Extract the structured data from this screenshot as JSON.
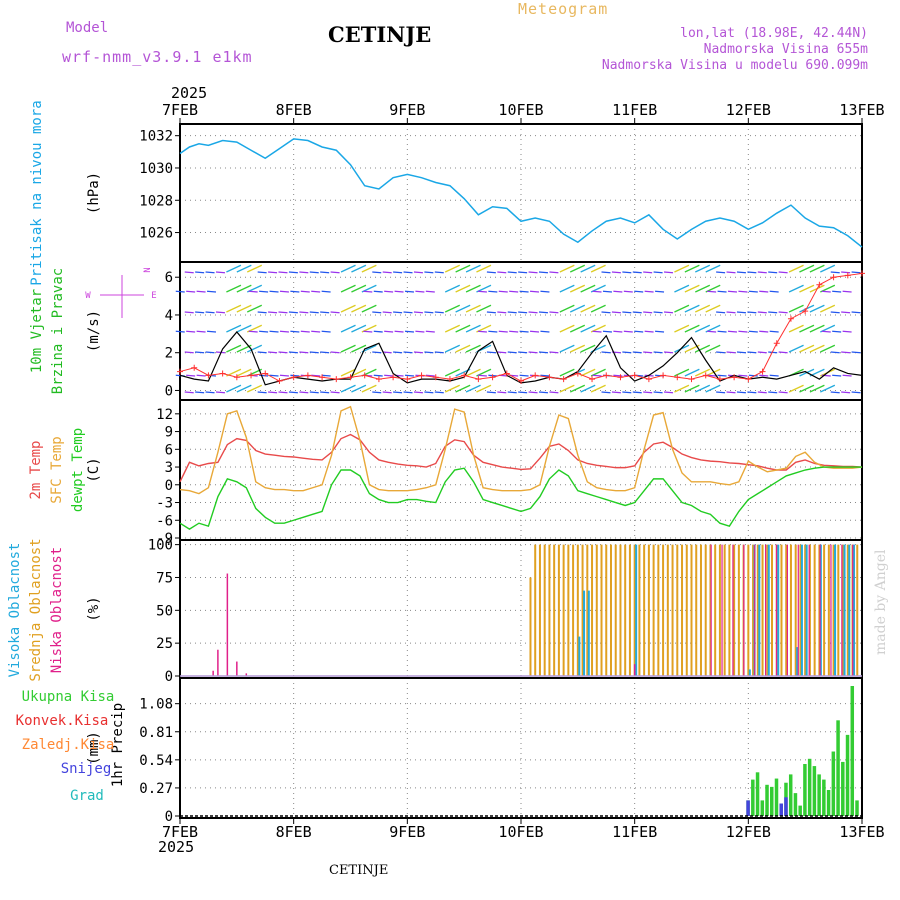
{
  "header": {
    "model_label": "Model",
    "model_name": "wrf-nmm_v3.9.1 e1km",
    "station": "CETINJE",
    "app_title": "Meteogram",
    "lonlat": "lon,lat (18.98E, 42.44N)",
    "altitude": "Nadmorska Visina 655m",
    "model_altitude": "Nadmorska Visina u modelu 690.099m",
    "footer_station": "CETINJE",
    "credit": "made by Angel"
  },
  "colors": {
    "pressure": "#1aa7e6",
    "wind_speed": "#000000",
    "gust": "#ff3030",
    "temp2m": "#e84a4a",
    "sfc_temp": "#e8a838",
    "dewpoint": "#22cc22",
    "high_cloud": "#22aadd",
    "mid_cloud": "#e0a020",
    "low_cloud": "#e0208a",
    "total_precip": "#33cc33",
    "conv_precip": "#e83030",
    "frozen_precip": "#ff8833",
    "snow": "#4444dd",
    "hail": "#22bbbb",
    "compass": "#cc44dd"
  },
  "x_axis": {
    "year": "2025",
    "ticks": [
      "7FEB",
      "8FEB",
      "9FEB",
      "10FEB",
      "11FEB",
      "12FEB",
      "13FEB"
    ]
  },
  "compass": {
    "n": "N",
    "s": "S",
    "e": "E",
    "w": "W"
  },
  "chart_data": [
    {
      "type": "line",
      "title": "",
      "ylabel_lines": [
        "Pritisak na nivou mora"
      ],
      "unit": "(hPa)",
      "ylim": [
        1024.3,
        1032.6
      ],
      "yticks": [
        1026,
        1028,
        1030,
        1032
      ],
      "ytick_labels": [
        "1026",
        "1028",
        "1030",
        "1032"
      ],
      "x": [
        0,
        2,
        4,
        6,
        9,
        12,
        15,
        18,
        21,
        24,
        27,
        30,
        33,
        36,
        39,
        42,
        45,
        48,
        51,
        54,
        57,
        60,
        63,
        66,
        69,
        72,
        75,
        78,
        81,
        84,
        87,
        90,
        93,
        96,
        99,
        102,
        105,
        108,
        111,
        114,
        117,
        120,
        123,
        126,
        129,
        132,
        135,
        138,
        141,
        144
      ],
      "series": [
        {
          "values": [
            1030.9,
            1031.3,
            1031.5,
            1031.4,
            1031.7,
            1031.6,
            1031.1,
            1030.6,
            1031.2,
            1031.8,
            1031.7,
            1031.3,
            1031.1,
            1030.2,
            1028.9,
            1028.7,
            1029.4,
            1029.6,
            1029.4,
            1029.1,
            1028.9,
            1028.1,
            1027.1,
            1027.6,
            1027.5,
            1026.7,
            1026.9,
            1026.7,
            1025.9,
            1025.4,
            1026.1,
            1026.7,
            1026.9,
            1026.6,
            1027.1,
            1026.2,
            1025.6,
            1026.2,
            1026.7,
            1026.9,
            1026.7,
            1026.2,
            1026.6,
            1027.2,
            1027.7,
            1026.9,
            1026.4,
            1026.3,
            1025.8,
            1025.1
          ]
        }
      ]
    },
    {
      "type": "line",
      "title": "",
      "ylabel_lines": [
        "10m Vjetar",
        "Brzina i Pravac"
      ],
      "unit": "(m/s)",
      "ylim": [
        -0.4,
        6.7
      ],
      "yticks": [
        0,
        2,
        4,
        6
      ],
      "ytick_labels": [
        "0",
        "2",
        "4",
        "6"
      ],
      "x": [
        0,
        3,
        6,
        9,
        12,
        15,
        18,
        21,
        24,
        27,
        30,
        33,
        36,
        39,
        42,
        45,
        48,
        51,
        54,
        57,
        60,
        63,
        66,
        69,
        72,
        75,
        78,
        81,
        84,
        87,
        90,
        93,
        96,
        99,
        102,
        105,
        108,
        111,
        114,
        117,
        120,
        123,
        126,
        129,
        132,
        135,
        138,
        141,
        144
      ],
      "series": [
        {
          "name": "wind speed",
          "values": [
            0.8,
            0.6,
            0.5,
            2.2,
            3.1,
            2.2,
            0.3,
            0.5,
            0.7,
            0.6,
            0.5,
            0.6,
            0.6,
            2.2,
            2.5,
            0.9,
            0.4,
            0.6,
            0.6,
            0.5,
            0.7,
            2.1,
            2.6,
            0.8,
            0.4,
            0.5,
            0.7,
            0.6,
            1.0,
            2.0,
            2.9,
            1.2,
            0.5,
            0.8,
            1.3,
            2.0,
            2.8,
            1.6,
            0.5,
            0.8,
            0.6,
            0.7,
            0.6,
            0.8,
            1.0,
            0.6,
            1.2,
            0.9,
            0.8
          ]
        },
        {
          "name": "gust",
          "values": [
            1.0,
            1.2,
            0.8,
            0.9,
            0.7,
            0.8,
            0.9,
            0.5,
            0.7,
            0.8,
            0.7,
            0.6,
            0.7,
            0.8,
            0.6,
            0.7,
            0.6,
            0.8,
            0.7,
            0.6,
            0.8,
            0.6,
            0.7,
            0.9,
            0.5,
            0.8,
            0.7,
            0.6,
            0.9,
            0.6,
            0.8,
            0.7,
            0.8,
            0.6,
            0.8,
            0.7,
            0.6,
            0.8,
            0.6,
            0.7,
            0.6,
            1.0,
            2.5,
            3.8,
            4.2,
            5.6,
            6.0,
            6.1,
            6.2
          ]
        }
      ]
    },
    {
      "type": "line",
      "title": "",
      "ylabel_lines": [
        "2m Temp",
        "SFC Temp",
        "dewpt Temp"
      ],
      "unit": "(C)",
      "ylim": [
        -9,
        14
      ],
      "yticks": [
        -9,
        -6,
        -3,
        0,
        3,
        6,
        9,
        12
      ],
      "ytick_labels": [
        "-9",
        "-6",
        "-3",
        "0",
        "3",
        "6",
        "9",
        "12"
      ],
      "x": [
        0,
        2,
        4,
        6,
        8,
        10,
        12,
        14,
        16,
        18,
        20,
        22,
        24,
        26,
        28,
        30,
        32,
        34,
        36,
        38,
        40,
        42,
        44,
        46,
        48,
        50,
        52,
        54,
        56,
        58,
        60,
        62,
        64,
        66,
        68,
        70,
        72,
        74,
        76,
        78,
        80,
        82,
        84,
        86,
        88,
        90,
        92,
        94,
        96,
        98,
        100,
        102,
        104,
        106,
        108,
        110,
        112,
        114,
        116,
        118,
        120,
        122,
        124,
        126,
        128,
        130,
        132,
        134,
        136,
        138,
        140,
        142,
        144
      ],
      "series": [
        {
          "name": "2m Temp",
          "values": [
            0.5,
            3.8,
            3.2,
            3.6,
            3.8,
            6.8,
            7.8,
            7.5,
            5.8,
            5.2,
            5.0,
            4.8,
            4.7,
            4.5,
            4.3,
            4.2,
            5.5,
            7.8,
            8.5,
            7.6,
            5.5,
            4.2,
            3.8,
            3.5,
            3.3,
            3.2,
            3.0,
            3.6,
            6.5,
            7.6,
            7.3,
            5.0,
            3.8,
            3.4,
            3.0,
            2.8,
            2.6,
            2.7,
            4.5,
            6.5,
            6.9,
            5.8,
            4.2,
            3.6,
            3.3,
            3.1,
            2.9,
            2.9,
            3.2,
            5.5,
            6.9,
            7.2,
            6.3,
            5.2,
            4.6,
            4.2,
            4.0,
            3.9,
            3.7,
            3.6,
            3.4,
            3.2,
            2.8,
            2.5,
            2.5,
            3.8,
            4.2,
            3.6,
            3.3,
            3.2,
            3.1,
            3.1,
            3.0
          ]
        },
        {
          "name": "SFC Temp",
          "values": [
            -0.8,
            -1.0,
            -1.5,
            -0.5,
            5.5,
            12.0,
            12.5,
            8.0,
            0.5,
            -0.5,
            -0.8,
            -0.8,
            -1.0,
            -1.0,
            -0.5,
            0.0,
            5.0,
            12.5,
            13.2,
            7.5,
            0.0,
            -0.8,
            -1.0,
            -1.0,
            -1.0,
            -0.8,
            -0.5,
            0.0,
            6.0,
            12.8,
            12.3,
            5.0,
            -0.5,
            -0.8,
            -1.0,
            -1.0,
            -1.0,
            -0.8,
            0.0,
            6.5,
            11.8,
            11.2,
            5.0,
            0.5,
            -0.5,
            -0.8,
            -1.0,
            -1.0,
            -0.5,
            6.0,
            11.8,
            12.2,
            6.0,
            2.0,
            0.5,
            0.5,
            0.5,
            0.2,
            0.0,
            0.5,
            4.0,
            3.0,
            2.2,
            2.5,
            2.8,
            4.8,
            5.5,
            3.8,
            3.0,
            2.8,
            2.8,
            2.8,
            3.0
          ]
        },
        {
          "name": "dewpt Temp",
          "values": [
            -6.5,
            -7.5,
            -6.5,
            -7.0,
            -2.0,
            1.0,
            0.5,
            -0.5,
            -4.0,
            -5.5,
            -6.5,
            -6.5,
            -6.0,
            -5.5,
            -5.0,
            -4.5,
            0.0,
            2.5,
            2.5,
            1.5,
            -1.5,
            -2.5,
            -3.0,
            -3.0,
            -2.5,
            -2.5,
            -2.8,
            -3.0,
            0.5,
            2.5,
            2.8,
            0.5,
            -2.5,
            -3.0,
            -3.5,
            -4.0,
            -4.5,
            -4.0,
            -2.0,
            1.0,
            2.5,
            1.5,
            -1.0,
            -1.5,
            -2.0,
            -2.5,
            -3.0,
            -3.5,
            -3.0,
            -1.0,
            1.0,
            1.0,
            -1.0,
            -3.0,
            -3.5,
            -4.5,
            -5.0,
            -6.5,
            -7.0,
            -4.5,
            -2.5,
            -1.5,
            -0.5,
            0.5,
            1.5,
            2.0,
            2.5,
            2.8,
            3.0,
            3.0,
            3.0,
            3.0,
            3.0
          ]
        }
      ]
    },
    {
      "type": "bar",
      "title": "",
      "ylabel_lines": [
        "Visoka Oblacnost",
        "Srednja Oblacnost",
        "Niska Oblacnost"
      ],
      "unit": "(%)",
      "ylim": [
        0,
        102
      ],
      "yticks": [
        0,
        25,
        50,
        75,
        100
      ],
      "ytick_labels": [
        "0",
        "25",
        "50",
        "75",
        "100"
      ],
      "note": "x in hours from 7FEB 00; hourly bars from ~11FEB 02 onward mostly 100%",
      "low_cloud": {
        "x": [
          7,
          8,
          10,
          12,
          14,
          96
        ],
        "values": [
          4,
          20,
          78,
          11,
          2,
          9
        ]
      },
      "mid_cloud": {
        "x_start": 74,
        "x_end": 143,
        "step": 1,
        "values_pattern": [
          75,
          100,
          100,
          100,
          100,
          100,
          100,
          100,
          100,
          100,
          100,
          100,
          100,
          100,
          100,
          100,
          100,
          100,
          100,
          100,
          100,
          100,
          100,
          100,
          100,
          100,
          100,
          100,
          100,
          100,
          100,
          100,
          100,
          100,
          100,
          100,
          100,
          100,
          100,
          100,
          100,
          100,
          100,
          100,
          100,
          100,
          100,
          100,
          100,
          100,
          100,
          100,
          100,
          100,
          100,
          100,
          100,
          100,
          100,
          100,
          100,
          100,
          100,
          100,
          100,
          100,
          100,
          100,
          100,
          100
        ]
      },
      "high_cloud": {
        "x": [
          84,
          85,
          86,
          96,
          118,
          120,
          121,
          122,
          124,
          126,
          130,
          131,
          132,
          135,
          138,
          140,
          141,
          142
        ],
        "values": [
          30,
          65,
          65,
          100,
          0,
          5,
          100,
          100,
          100,
          100,
          22,
          100,
          100,
          100,
          100,
          100,
          100,
          100
        ]
      }
    },
    {
      "type": "bar",
      "title": "",
      "ylabel_lines": [
        "1hr Precip"
      ],
      "unit": "(mm)",
      "legend": [
        "Ukupna Kisa",
        "Konvek.Kisa",
        "Zaledj.Kisa",
        "Snijeg",
        "Grad"
      ],
      "ylim": [
        0,
        1.25
      ],
      "yticks": [
        0,
        0.27,
        0.54,
        0.81,
        1.08
      ],
      "ytick_labels": [
        "0",
        "0.27",
        "0.54",
        "0.81",
        "1.08"
      ],
      "x": [
        120,
        121,
        122,
        123,
        124,
        125,
        126,
        127,
        128,
        129,
        130,
        131,
        132,
        133,
        134,
        135,
        136,
        137,
        138,
        139,
        140,
        141,
        142,
        143
      ],
      "total": [
        0.15,
        0.35,
        0.42,
        0.15,
        0.3,
        0.28,
        0.36,
        0.12,
        0.32,
        0.4,
        0.22,
        0.1,
        0.5,
        0.55,
        0.48,
        0.4,
        0.35,
        0.25,
        0.62,
        0.92,
        0.52,
        0.78,
        1.25,
        0.15
      ],
      "snow": [
        0.15,
        0,
        0,
        0,
        0,
        0,
        0,
        0.12,
        0.18,
        0,
        0,
        0,
        0,
        0,
        0,
        0,
        0,
        0,
        0,
        0,
        0,
        0,
        0,
        0
      ]
    }
  ]
}
